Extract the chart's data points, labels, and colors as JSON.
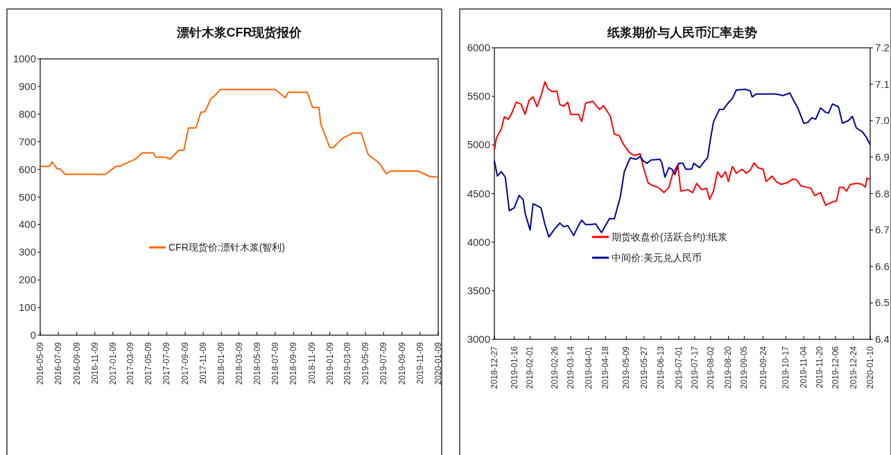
{
  "chart_data": [
    {
      "type": "line",
      "title": "漂针木浆CFR现货报价",
      "x": [
        "2016-05-09",
        "2016-06-09",
        "2016-06-18",
        "2016-07-05",
        "2016-07-15",
        "2016-08-01",
        "2016-12-15",
        "2017-01-17",
        "2017-02-01",
        "2017-03-25",
        "2017-04-18",
        "2017-05-25",
        "2017-06-01",
        "2017-07-05",
        "2017-07-20",
        "2017-08-18",
        "2017-09-05",
        "2017-09-20",
        "2017-10-15",
        "2017-11-01",
        "2017-11-15",
        "2017-12-05",
        "2017-12-15",
        "2018-01-05",
        "2018-07-09",
        "2018-08-12",
        "2018-08-22",
        "2018-10-25",
        "2018-11-12",
        "2018-12-03",
        "2018-12-10",
        "2019-01-09",
        "2019-01-20",
        "2019-02-20",
        "2019-03-28",
        "2019-04-25",
        "2019-05-18",
        "2019-06-25",
        "2019-07-18",
        "2019-08-01",
        "2019-11-02",
        "2019-12-12",
        "2020-01-09"
      ],
      "series": [
        {
          "name": "CFR现货价:漂针木浆(智利)",
          "color": "#ff6600",
          "values": [
            611,
            611,
            627,
            602,
            602,
            582,
            582,
            610,
            612,
            637,
            660,
            660,
            645,
            644,
            637,
            669,
            670,
            750,
            750,
            807,
            809,
            857,
            864,
            889,
            889,
            859,
            879,
            879,
            824,
            824,
            762,
            679,
            679,
            712,
            732,
            732,
            654,
            622,
            584,
            594,
            594,
            574,
            572
          ]
        }
      ],
      "xlim": [
        "2016-05-09",
        "2020-01-09"
      ],
      "xticks": [
        "2016-05-09",
        "2016-07-09",
        "2016-09-09",
        "2016-11-09",
        "2017-01-09",
        "2017-03-09",
        "2017-05-09",
        "2017-07-09",
        "2017-09-09",
        "2017-11-09",
        "2018-01-09",
        "2018-03-09",
        "2018-05-09",
        "2018-07-09",
        "2018-09-09",
        "2018-11-09",
        "2019-01-09",
        "2019-03-09",
        "2019-05-09",
        "2019-07-09",
        "2019-09-09",
        "2019-11-09",
        "2020-01-09"
      ],
      "ylim": [
        0,
        1000
      ],
      "yticks": [
        0,
        100,
        200,
        300,
        400,
        500,
        600,
        700,
        800,
        900,
        1000
      ],
      "legend": "bottom"
    },
    {
      "type": "line",
      "title": "纸浆期价与人民币汇率走势",
      "series": [
        {
          "name": "期货收盘价(活跃合约):纸浆",
          "color": "#ff0000",
          "x": [
            "2018-12-27",
            "2018-12-29",
            "2019-01-03",
            "2019-01-06",
            "2019-01-10",
            "2019-01-13",
            "2019-01-18",
            "2019-01-23",
            "2019-01-27",
            "2019-01-31",
            "2019-02-04",
            "2019-02-08",
            "2019-02-12",
            "2019-02-16",
            "2019-02-19",
            "2019-02-23",
            "2019-02-28",
            "2019-03-03",
            "2019-03-07",
            "2019-03-11",
            "2019-03-14",
            "2019-03-22",
            "2019-03-25",
            "2019-03-29",
            "2019-04-05",
            "2019-04-12",
            "2019-04-16",
            "2019-04-23",
            "2019-04-27",
            "2019-05-02",
            "2019-05-06",
            "2019-05-12",
            "2019-05-17",
            "2019-05-23",
            "2019-05-26",
            "2019-05-31",
            "2019-06-05",
            "2019-06-10",
            "2019-06-16",
            "2019-06-21",
            "2019-06-25",
            "2019-06-30",
            "2019-07-03",
            "2019-07-10",
            "2019-07-15",
            "2019-07-19",
            "2019-07-24",
            "2019-07-29",
            "2019-08-01",
            "2019-08-05",
            "2019-08-09",
            "2019-08-13",
            "2019-08-17",
            "2019-08-20",
            "2019-08-24",
            "2019-08-28",
            "2019-09-03",
            "2019-09-07",
            "2019-09-11",
            "2019-09-15",
            "2019-09-19",
            "2019-09-24",
            "2019-09-27",
            "2019-10-03",
            "2019-10-07",
            "2019-10-12",
            "2019-10-18",
            "2019-10-24",
            "2019-10-28",
            "2019-11-01",
            "2019-11-07",
            "2019-11-11",
            "2019-11-15",
            "2019-11-21",
            "2019-11-26",
            "2019-12-02",
            "2019-12-07",
            "2019-12-10",
            "2019-12-14",
            "2019-12-17",
            "2019-12-21",
            "2019-12-28",
            "2020-01-02",
            "2020-01-05",
            "2020-01-07",
            "2020-01-10"
          ],
          "values": [
            4950,
            5070,
            5165,
            5290,
            5265,
            5315,
            5440,
            5420,
            5315,
            5460,
            5495,
            5395,
            5505,
            5650,
            5580,
            5550,
            5555,
            5415,
            5400,
            5440,
            5315,
            5315,
            5240,
            5430,
            5450,
            5365,
            5405,
            5295,
            5110,
            5095,
            5010,
            4925,
            4890,
            4910,
            4780,
            4610,
            4580,
            4565,
            4510,
            4565,
            4710,
            4795,
            4525,
            4540,
            4510,
            4605,
            4540,
            4555,
            4440,
            4525,
            4725,
            4665,
            4725,
            4625,
            4780,
            4710,
            4750,
            4710,
            4740,
            4815,
            4765,
            4750,
            4625,
            4680,
            4625,
            4595,
            4610,
            4650,
            4640,
            4580,
            4565,
            4555,
            4480,
            4510,
            4380,
            4410,
            4425,
            4565,
            4565,
            4525,
            4595,
            4605,
            4595,
            4565,
            4660,
            4645
          ]
        },
        {
          "name": "中间价:美元兑人民币",
          "color": "#000099",
          "axis": "y2",
          "x": [
            "2018-12-27",
            "2018-12-30",
            "2019-01-03",
            "2019-01-07",
            "2019-01-11",
            "2019-01-16",
            "2019-01-21",
            "2019-01-25",
            "2019-01-27",
            "2019-02-01",
            "2019-02-04",
            "2019-02-08",
            "2019-02-12",
            "2019-02-16",
            "2019-02-20",
            "2019-02-25",
            "2019-03-03",
            "2019-03-07",
            "2019-03-11",
            "2019-03-17",
            "2019-03-21",
            "2019-03-25",
            "2019-03-29",
            "2019-04-03",
            "2019-04-08",
            "2019-04-14",
            "2019-04-16",
            "2019-04-22",
            "2019-04-27",
            "2019-04-30",
            "2019-05-03",
            "2019-05-07",
            "2019-05-13",
            "2019-05-19",
            "2019-05-23",
            "2019-05-26",
            "2019-05-30",
            "2019-06-03",
            "2019-06-12",
            "2019-06-14",
            "2019-06-17",
            "2019-06-21",
            "2019-06-24",
            "2019-06-27",
            "2019-07-01",
            "2019-07-05",
            "2019-07-08",
            "2019-07-14",
            "2019-07-16",
            "2019-07-22",
            "2019-07-26",
            "2019-07-30",
            "2019-08-02",
            "2019-08-05",
            "2019-08-11",
            "2019-08-15",
            "2019-08-19",
            "2019-08-24",
            "2019-08-28",
            "2019-09-06",
            "2019-09-11",
            "2019-09-13",
            "2019-09-17",
            "2019-10-07",
            "2019-10-14",
            "2019-10-21",
            "2019-10-25",
            "2019-10-29",
            "2019-11-04",
            "2019-11-08",
            "2019-11-12",
            "2019-11-16",
            "2019-11-21",
            "2019-11-26",
            "2019-11-29",
            "2019-12-03",
            "2019-12-09",
            "2019-12-13",
            "2019-12-19",
            "2019-12-23",
            "2019-12-27",
            "2020-01-02",
            "2020-01-06",
            "2020-01-10"
          ],
          "values": [
            6.89,
            6.848,
            6.86,
            6.845,
            6.753,
            6.761,
            6.795,
            6.784,
            6.746,
            6.7,
            6.772,
            6.767,
            6.761,
            6.715,
            6.681,
            6.7,
            6.719,
            6.709,
            6.712,
            6.685,
            6.708,
            6.727,
            6.715,
            6.715,
            6.717,
            6.693,
            6.702,
            6.731,
            6.731,
            6.761,
            6.791,
            6.86,
            6.898,
            6.894,
            6.902,
            6.89,
            6.883,
            6.892,
            6.894,
            6.883,
            6.845,
            6.871,
            6.867,
            6.852,
            6.883,
            6.883,
            6.867,
            6.867,
            6.883,
            6.871,
            6.886,
            6.898,
            6.951,
            6.997,
            7.031,
            7.031,
            7.046,
            7.061,
            7.084,
            7.086,
            7.082,
            7.065,
            7.073,
            7.073,
            7.069,
            7.076,
            7.054,
            7.035,
            6.993,
            6.995,
            7.008,
            7.004,
            7.035,
            7.023,
            7.021,
            7.046,
            7.038,
            6.993,
            7.0,
            7.012,
            6.98,
            6.97,
            6.955,
            6.934
          ]
        }
      ],
      "xlim": [
        "2018-12-27",
        "2020-01-10"
      ],
      "xticks": [
        "2018-12-27",
        "2019-01-16",
        "2019-02-01",
        "2019-02-26",
        "2019-03-14",
        "2019-04-01",
        "2019-04-18",
        "2019-05-09",
        "2019-05-27",
        "2019-06-13",
        "2019-07-01",
        "2019-07-17",
        "2019-08-02",
        "2019-08-20",
        "2019-09-05",
        "2019-09-24",
        "2019-10-17",
        "2019-11-04",
        "2019-11-20",
        "2019-12-06",
        "2019-12-24",
        "2020-01-10"
      ],
      "ylim": [
        3000,
        6000
      ],
      "yticks": [
        3000,
        3500,
        4000,
        4500,
        5000,
        5500,
        6000
      ],
      "y2lim": [
        6.4,
        7.2
      ],
      "y2ticks": [
        6.4,
        6.5,
        6.6,
        6.7,
        6.8,
        6.9,
        {
          "value": 7,
          "label": "7.0"
        },
        7.1,
        7.2
      ],
      "legend": "bottom"
    }
  ]
}
